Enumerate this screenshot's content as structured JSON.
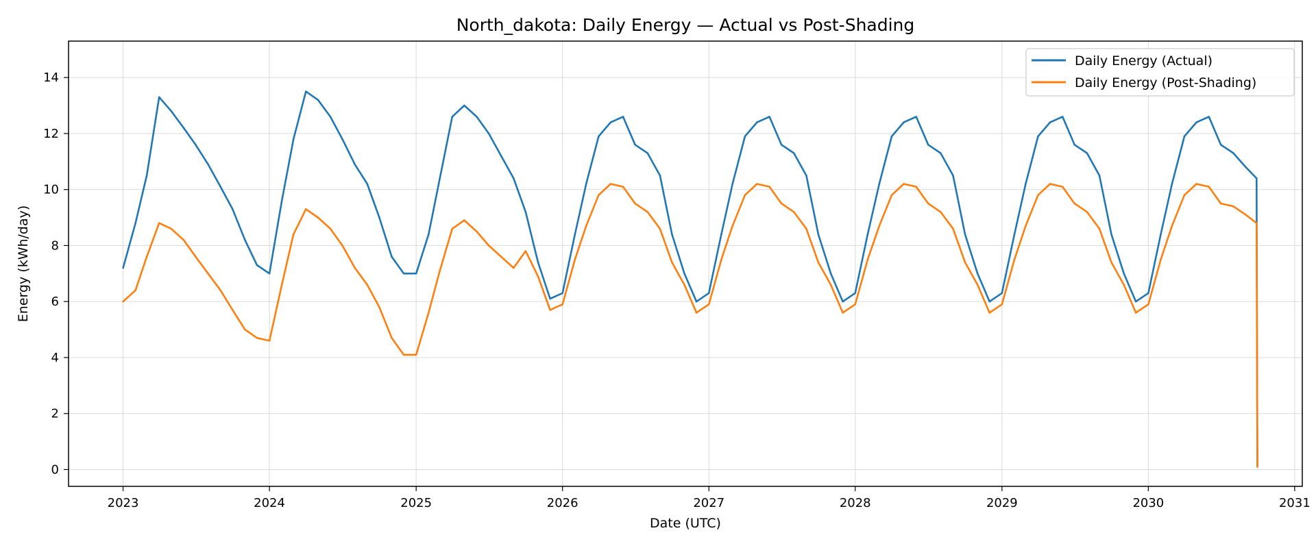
{
  "chart_data": {
    "type": "line",
    "title": "North_dakota: Daily Energy — Actual vs Post-Shading",
    "xlabel": "Date (UTC)",
    "ylabel": "Energy (kWh/day)",
    "x_axis": {
      "type": "date",
      "range": [
        "2022-08-18",
        "2031-01-20"
      ],
      "ticks": [
        "2023-01-01",
        "2024-01-01",
        "2025-01-01",
        "2026-01-01",
        "2027-01-01",
        "2028-01-01",
        "2029-01-01",
        "2030-01-01",
        "2031-01-01"
      ],
      "tick_labels": [
        "2023",
        "2024",
        "2025",
        "2026",
        "2027",
        "2028",
        "2029",
        "2030",
        "2031"
      ]
    },
    "y_axis": {
      "range": [
        -0.6,
        15.3
      ],
      "ticks": [
        0,
        2,
        4,
        6,
        8,
        10,
        12,
        14
      ],
      "tick_labels": [
        "0",
        "2",
        "4",
        "6",
        "8",
        "10",
        "12",
        "14"
      ]
    },
    "grid": true,
    "legend_position": "top-right",
    "series": [
      {
        "name": "Daily Energy (Actual)",
        "color": "#1f77b4",
        "points": [
          [
            "2023-01-01",
            7.2
          ],
          [
            "2023-02-01",
            8.8
          ],
          [
            "2023-03-01",
            10.5
          ],
          [
            "2023-04-01",
            13.3
          ],
          [
            "2023-05-01",
            12.8
          ],
          [
            "2023-06-01",
            12.2
          ],
          [
            "2023-07-01",
            11.6
          ],
          [
            "2023-08-01",
            10.9
          ],
          [
            "2023-09-01",
            10.1
          ],
          [
            "2023-10-01",
            9.3
          ],
          [
            "2023-11-01",
            8.2
          ],
          [
            "2023-12-01",
            7.3
          ],
          [
            "2024-01-01",
            7.0
          ],
          [
            "2024-02-01",
            9.6
          ],
          [
            "2024-03-01",
            11.8
          ],
          [
            "2024-04-01",
            13.5
          ],
          [
            "2024-05-01",
            13.2
          ],
          [
            "2024-06-01",
            12.6
          ],
          [
            "2024-07-01",
            11.8
          ],
          [
            "2024-08-01",
            10.9
          ],
          [
            "2024-09-01",
            10.2
          ],
          [
            "2024-10-01",
            9.0
          ],
          [
            "2024-11-01",
            7.6
          ],
          [
            "2024-12-01",
            7.0
          ],
          [
            "2025-01-01",
            7.0
          ],
          [
            "2025-02-01",
            8.4
          ],
          [
            "2025-03-01",
            10.4
          ],
          [
            "2025-04-01",
            12.6
          ],
          [
            "2025-05-01",
            13.0
          ],
          [
            "2025-06-01",
            12.6
          ],
          [
            "2025-07-01",
            12.0
          ],
          [
            "2025-08-01",
            11.2
          ],
          [
            "2025-09-01",
            10.4
          ],
          [
            "2025-10-01",
            9.2
          ],
          [
            "2025-11-01",
            7.4
          ],
          [
            "2025-12-01",
            6.1
          ],
          [
            "2026-01-01",
            6.3
          ],
          [
            "2026-02-01",
            8.4
          ],
          [
            "2026-03-01",
            10.2
          ],
          [
            "2026-04-01",
            11.9
          ],
          [
            "2026-05-01",
            12.4
          ],
          [
            "2026-06-01",
            12.6
          ],
          [
            "2026-07-01",
            11.6
          ],
          [
            "2026-08-01",
            11.3
          ],
          [
            "2026-09-01",
            10.5
          ],
          [
            "2026-10-01",
            8.4
          ],
          [
            "2026-11-01",
            7.0
          ],
          [
            "2026-12-01",
            6.0
          ],
          [
            "2027-01-01",
            6.3
          ],
          [
            "2027-02-01",
            8.4
          ],
          [
            "2027-03-01",
            10.2
          ],
          [
            "2027-04-01",
            11.9
          ],
          [
            "2027-05-01",
            12.4
          ],
          [
            "2027-06-01",
            12.6
          ],
          [
            "2027-07-01",
            11.6
          ],
          [
            "2027-08-01",
            11.3
          ],
          [
            "2027-09-01",
            10.5
          ],
          [
            "2027-10-01",
            8.4
          ],
          [
            "2027-11-01",
            7.0
          ],
          [
            "2027-12-01",
            6.0
          ],
          [
            "2028-01-01",
            6.3
          ],
          [
            "2028-02-01",
            8.4
          ],
          [
            "2028-03-01",
            10.2
          ],
          [
            "2028-04-01",
            11.9
          ],
          [
            "2028-05-01",
            12.4
          ],
          [
            "2028-06-01",
            12.6
          ],
          [
            "2028-07-01",
            11.6
          ],
          [
            "2028-08-01",
            11.3
          ],
          [
            "2028-09-01",
            10.5
          ],
          [
            "2028-10-01",
            8.4
          ],
          [
            "2028-11-01",
            7.0
          ],
          [
            "2028-12-01",
            6.0
          ],
          [
            "2029-01-01",
            6.3
          ],
          [
            "2029-02-01",
            8.4
          ],
          [
            "2029-03-01",
            10.2
          ],
          [
            "2029-04-01",
            11.9
          ],
          [
            "2029-05-01",
            12.4
          ],
          [
            "2029-06-01",
            12.6
          ],
          [
            "2029-07-01",
            11.6
          ],
          [
            "2029-08-01",
            11.3
          ],
          [
            "2029-09-01",
            10.5
          ],
          [
            "2029-10-01",
            8.4
          ],
          [
            "2029-11-01",
            7.0
          ],
          [
            "2029-12-01",
            6.0
          ],
          [
            "2030-01-01",
            6.3
          ],
          [
            "2030-02-01",
            8.4
          ],
          [
            "2030-03-01",
            10.2
          ],
          [
            "2030-04-01",
            11.9
          ],
          [
            "2030-05-01",
            12.4
          ],
          [
            "2030-06-01",
            12.6
          ],
          [
            "2030-07-01",
            11.6
          ],
          [
            "2030-08-01",
            11.3
          ],
          [
            "2030-09-01",
            10.8
          ],
          [
            "2030-09-28",
            10.4
          ],
          [
            "2030-09-30",
            0.1
          ]
        ]
      },
      {
        "name": "Daily Energy (Post-Shading)",
        "color": "#ff7f0e",
        "points": [
          [
            "2023-01-01",
            6.0
          ],
          [
            "2023-02-01",
            6.4
          ],
          [
            "2023-03-01",
            7.6
          ],
          [
            "2023-04-01",
            8.8
          ],
          [
            "2023-05-01",
            8.6
          ],
          [
            "2023-06-01",
            8.2
          ],
          [
            "2023-07-01",
            7.6
          ],
          [
            "2023-08-01",
            7.0
          ],
          [
            "2023-09-01",
            6.4
          ],
          [
            "2023-10-01",
            5.7
          ],
          [
            "2023-11-01",
            5.0
          ],
          [
            "2023-12-01",
            4.7
          ],
          [
            "2024-01-01",
            4.6
          ],
          [
            "2024-02-01",
            6.6
          ],
          [
            "2024-03-01",
            8.4
          ],
          [
            "2024-04-01",
            9.3
          ],
          [
            "2024-05-01",
            9.0
          ],
          [
            "2024-06-01",
            8.6
          ],
          [
            "2024-07-01",
            8.0
          ],
          [
            "2024-08-01",
            7.2
          ],
          [
            "2024-09-01",
            6.6
          ],
          [
            "2024-10-01",
            5.8
          ],
          [
            "2024-11-01",
            4.7
          ],
          [
            "2024-12-01",
            4.1
          ],
          [
            "2025-01-01",
            4.1
          ],
          [
            "2025-02-01",
            5.6
          ],
          [
            "2025-03-01",
            7.1
          ],
          [
            "2025-04-01",
            8.6
          ],
          [
            "2025-05-01",
            8.9
          ],
          [
            "2025-06-01",
            8.5
          ],
          [
            "2025-07-01",
            8.0
          ],
          [
            "2025-08-01",
            7.6
          ],
          [
            "2025-09-01",
            7.2
          ],
          [
            "2025-10-01",
            7.8
          ],
          [
            "2025-11-01",
            6.9
          ],
          [
            "2025-12-01",
            5.7
          ],
          [
            "2026-01-01",
            5.9
          ],
          [
            "2026-02-01",
            7.5
          ],
          [
            "2026-03-01",
            8.7
          ],
          [
            "2026-04-01",
            9.8
          ],
          [
            "2026-05-01",
            10.2
          ],
          [
            "2026-06-01",
            10.1
          ],
          [
            "2026-07-01",
            9.5
          ],
          [
            "2026-08-01",
            9.2
          ],
          [
            "2026-09-01",
            8.6
          ],
          [
            "2026-10-01",
            7.4
          ],
          [
            "2026-11-01",
            6.6
          ],
          [
            "2026-12-01",
            5.6
          ],
          [
            "2027-01-01",
            5.9
          ],
          [
            "2027-02-01",
            7.5
          ],
          [
            "2027-03-01",
            8.7
          ],
          [
            "2027-04-01",
            9.8
          ],
          [
            "2027-05-01",
            10.2
          ],
          [
            "2027-06-01",
            10.1
          ],
          [
            "2027-07-01",
            9.5
          ],
          [
            "2027-08-01",
            9.2
          ],
          [
            "2027-09-01",
            8.6
          ],
          [
            "2027-10-01",
            7.4
          ],
          [
            "2027-11-01",
            6.6
          ],
          [
            "2027-12-01",
            5.6
          ],
          [
            "2028-01-01",
            5.9
          ],
          [
            "2028-02-01",
            7.5
          ],
          [
            "2028-03-01",
            8.7
          ],
          [
            "2028-04-01",
            9.8
          ],
          [
            "2028-05-01",
            10.2
          ],
          [
            "2028-06-01",
            10.1
          ],
          [
            "2028-07-01",
            9.5
          ],
          [
            "2028-08-01",
            9.2
          ],
          [
            "2028-09-01",
            8.6
          ],
          [
            "2028-10-01",
            7.4
          ],
          [
            "2028-11-01",
            6.6
          ],
          [
            "2028-12-01",
            5.6
          ],
          [
            "2029-01-01",
            5.9
          ],
          [
            "2029-02-01",
            7.5
          ],
          [
            "2029-03-01",
            8.7
          ],
          [
            "2029-04-01",
            9.8
          ],
          [
            "2029-05-01",
            10.2
          ],
          [
            "2029-06-01",
            10.1
          ],
          [
            "2029-07-01",
            9.5
          ],
          [
            "2029-08-01",
            9.2
          ],
          [
            "2029-09-01",
            8.6
          ],
          [
            "2029-10-01",
            7.4
          ],
          [
            "2029-11-01",
            6.6
          ],
          [
            "2029-12-01",
            5.6
          ],
          [
            "2030-01-01",
            5.9
          ],
          [
            "2030-02-01",
            7.5
          ],
          [
            "2030-03-01",
            8.7
          ],
          [
            "2030-04-01",
            9.8
          ],
          [
            "2030-05-01",
            10.2
          ],
          [
            "2030-06-01",
            10.1
          ],
          [
            "2030-07-01",
            9.5
          ],
          [
            "2030-08-01",
            9.4
          ],
          [
            "2030-09-01",
            9.1
          ],
          [
            "2030-09-28",
            8.8
          ],
          [
            "2030-09-30",
            0.1
          ]
        ]
      }
    ]
  }
}
